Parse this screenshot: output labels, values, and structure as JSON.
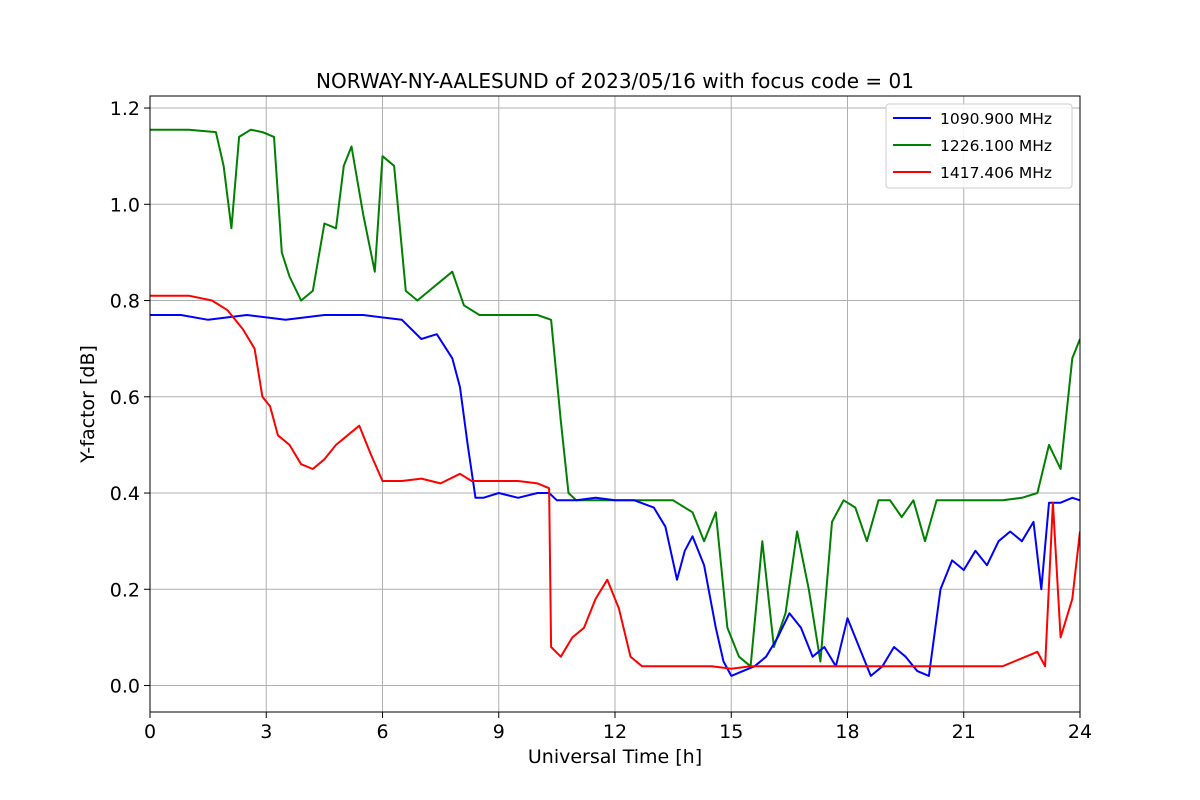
{
  "chart_data": {
    "type": "line",
    "title": "NORWAY-NY-AALESUND of 2023/05/16 with focus code = 01",
    "xlabel": "Universal Time [h]",
    "ylabel": "Y-factor [dB]",
    "xlim": [
      0,
      24
    ],
    "ylim": [
      -0.055,
      1.225
    ],
    "xticks": [
      "0",
      "3",
      "6",
      "9",
      "12",
      "15",
      "18",
      "21",
      "24"
    ],
    "yticks": [
      "0.0",
      "0.2",
      "0.4",
      "0.6",
      "0.8",
      "1.0",
      "1.2"
    ],
    "grid": true,
    "legend_position": "top-right",
    "series": [
      {
        "name": "1090.900 MHz",
        "color": "#0000ff",
        "x": [
          0,
          0.8,
          1.5,
          2.5,
          3.5,
          4.5,
          5.5,
          6.5,
          7.0,
          7.4,
          7.8,
          8.0,
          8.2,
          8.4,
          8.6,
          9.0,
          9.5,
          10.0,
          10.3,
          10.5,
          11.0,
          11.5,
          12.0,
          12.5,
          13.0,
          13.3,
          13.6,
          13.8,
          14.0,
          14.3,
          14.6,
          14.8,
          15.0,
          15.3,
          15.6,
          15.9,
          16.2,
          16.5,
          16.8,
          17.1,
          17.4,
          17.7,
          18.0,
          18.3,
          18.6,
          18.9,
          19.2,
          19.5,
          19.8,
          20.1,
          20.4,
          20.7,
          21.0,
          21.3,
          21.6,
          21.9,
          22.2,
          22.5,
          22.8,
          23.0,
          23.2,
          23.5,
          23.8,
          24.0
        ],
        "y": [
          0.77,
          0.77,
          0.76,
          0.77,
          0.76,
          0.77,
          0.77,
          0.76,
          0.72,
          0.73,
          0.68,
          0.62,
          0.5,
          0.39,
          0.39,
          0.4,
          0.39,
          0.4,
          0.4,
          0.385,
          0.385,
          0.39,
          0.385,
          0.385,
          0.37,
          0.33,
          0.22,
          0.28,
          0.31,
          0.25,
          0.12,
          0.05,
          0.02,
          0.03,
          0.04,
          0.06,
          0.1,
          0.15,
          0.12,
          0.06,
          0.08,
          0.04,
          0.14,
          0.08,
          0.02,
          0.04,
          0.08,
          0.06,
          0.03,
          0.02,
          0.2,
          0.26,
          0.24,
          0.28,
          0.25,
          0.3,
          0.32,
          0.3,
          0.34,
          0.2,
          0.38,
          0.38,
          0.39,
          0.385
        ]
      },
      {
        "name": "1226.100 MHz",
        "color": "#008000",
        "x": [
          0,
          1.0,
          1.7,
          1.9,
          2.1,
          2.3,
          2.6,
          2.9,
          3.2,
          3.4,
          3.6,
          3.9,
          4.2,
          4.5,
          4.8,
          5.0,
          5.2,
          5.5,
          5.8,
          6.0,
          6.3,
          6.6,
          6.9,
          7.2,
          7.5,
          7.8,
          8.1,
          8.5,
          9.0,
          9.5,
          10.0,
          10.35,
          10.6,
          10.8,
          11.0,
          11.5,
          12.0,
          12.5,
          13.0,
          13.5,
          14.0,
          14.3,
          14.6,
          14.9,
          15.2,
          15.5,
          15.8,
          16.1,
          16.4,
          16.7,
          17.0,
          17.3,
          17.6,
          17.9,
          18.2,
          18.5,
          18.8,
          19.1,
          19.4,
          19.7,
          20.0,
          20.3,
          20.6,
          21.0,
          21.5,
          22.0,
          22.5,
          22.9,
          23.2,
          23.5,
          23.8,
          24.0
        ],
        "y": [
          1.155,
          1.155,
          1.15,
          1.08,
          0.95,
          1.14,
          1.155,
          1.15,
          1.14,
          0.9,
          0.85,
          0.8,
          0.82,
          0.96,
          0.95,
          1.08,
          1.12,
          0.98,
          0.86,
          1.1,
          1.08,
          0.82,
          0.8,
          0.82,
          0.84,
          0.86,
          0.79,
          0.77,
          0.77,
          0.77,
          0.77,
          0.76,
          0.55,
          0.4,
          0.385,
          0.385,
          0.385,
          0.385,
          0.385,
          0.385,
          0.36,
          0.3,
          0.36,
          0.12,
          0.06,
          0.04,
          0.3,
          0.08,
          0.15,
          0.32,
          0.2,
          0.05,
          0.34,
          0.385,
          0.37,
          0.3,
          0.385,
          0.385,
          0.35,
          0.385,
          0.3,
          0.385,
          0.385,
          0.385,
          0.385,
          0.385,
          0.39,
          0.4,
          0.5,
          0.45,
          0.68,
          0.72
        ]
      },
      {
        "name": "1417.406 MHz",
        "color": "#ff0000",
        "x": [
          0,
          1.0,
          1.6,
          2.0,
          2.4,
          2.7,
          2.9,
          3.1,
          3.3,
          3.6,
          3.9,
          4.2,
          4.5,
          4.8,
          5.1,
          5.4,
          5.7,
          6.0,
          6.5,
          7.0,
          7.5,
          8.0,
          8.3,
          8.6,
          9.0,
          9.5,
          10.0,
          10.3,
          10.35,
          10.6,
          10.9,
          11.2,
          11.5,
          11.8,
          12.1,
          12.4,
          12.7,
          13.0,
          13.5,
          14.0,
          14.5,
          15.0,
          15.5,
          16.0,
          16.5,
          17.0,
          17.5,
          18.0,
          18.5,
          19.0,
          19.5,
          20.0,
          20.5,
          21.0,
          21.5,
          22.0,
          22.3,
          22.6,
          22.9,
          23.1,
          23.3,
          23.5,
          23.8,
          24.0
        ],
        "y": [
          0.81,
          0.81,
          0.8,
          0.78,
          0.74,
          0.7,
          0.6,
          0.58,
          0.52,
          0.5,
          0.46,
          0.45,
          0.47,
          0.5,
          0.52,
          0.54,
          0.48,
          0.425,
          0.425,
          0.43,
          0.42,
          0.44,
          0.425,
          0.425,
          0.425,
          0.425,
          0.42,
          0.41,
          0.08,
          0.06,
          0.1,
          0.12,
          0.18,
          0.22,
          0.16,
          0.06,
          0.04,
          0.04,
          0.04,
          0.04,
          0.04,
          0.035,
          0.04,
          0.04,
          0.04,
          0.04,
          0.04,
          0.04,
          0.04,
          0.04,
          0.04,
          0.04,
          0.04,
          0.04,
          0.04,
          0.04,
          0.05,
          0.06,
          0.07,
          0.04,
          0.38,
          0.1,
          0.18,
          0.32
        ]
      }
    ]
  }
}
